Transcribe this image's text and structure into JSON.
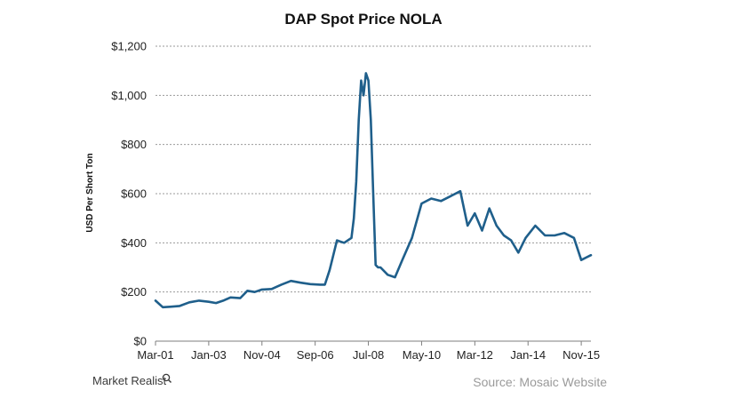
{
  "chart_data": {
    "type": "line",
    "title": "DAP Spot Price NOLA",
    "ylabel": "USD Per Short Ton",
    "xlabel": "",
    "ylim": [
      0,
      1200
    ],
    "yticks": [
      0,
      200,
      400,
      600,
      800,
      1000,
      1200
    ],
    "ytick_labels": [
      "$0",
      "$200",
      "$400",
      "$600",
      "$800",
      "$1,000",
      "$1,200"
    ],
    "xlim": [
      "2001-03",
      "2016-03"
    ],
    "x_tick_labels": [
      {
        "label": "Mar-01",
        "date": "2001-03"
      },
      {
        "label": "Jan-03",
        "date": "2003-01"
      },
      {
        "label": "Nov-04",
        "date": "2004-11"
      },
      {
        "label": "Sep-06",
        "date": "2006-09"
      },
      {
        "label": "Jul-08",
        "date": "2008-07"
      },
      {
        "label": "May-10",
        "date": "2010-05"
      },
      {
        "label": "Mar-12",
        "date": "2012-03"
      },
      {
        "label": "Jan-14",
        "date": "2014-01"
      },
      {
        "label": "Nov-15",
        "date": "2015-11"
      }
    ],
    "grid": {
      "horizontal": true,
      "style": "dotted"
    },
    "line_color": "#1f5f8b",
    "series": [
      {
        "x": [
          "2001-03",
          "2001-06",
          "2001-09",
          "2002-01",
          "2002-05",
          "2002-09",
          "2003-01",
          "2003-04",
          "2003-07",
          "2003-10",
          "2004-02",
          "2004-05",
          "2004-08",
          "2004-11",
          "2005-03",
          "2005-07",
          "2005-11",
          "2006-03",
          "2006-07",
          "2006-11",
          "2007-01",
          "2007-03",
          "2007-06",
          "2007-09",
          "2007-12",
          "2008-01",
          "2008-02",
          "2008-03",
          "2008-04",
          "2008-05",
          "2008-06",
          "2008-07",
          "2008-08",
          "2008-09",
          "2008-10",
          "2008-11",
          "2008-12",
          "2009-03",
          "2009-06",
          "2009-09",
          "2010-01",
          "2010-05",
          "2010-09",
          "2011-01",
          "2011-05",
          "2011-09",
          "2011-12",
          "2012-03",
          "2012-06",
          "2012-09",
          "2012-12",
          "2013-03",
          "2013-06",
          "2013-09",
          "2013-12",
          "2014-04",
          "2014-08",
          "2014-12",
          "2015-04",
          "2015-08",
          "2015-11",
          "2016-01",
          "2016-03"
        ],
        "y": [
          165,
          138,
          140,
          143,
          158,
          165,
          160,
          155,
          165,
          178,
          175,
          205,
          200,
          210,
          212,
          230,
          245,
          238,
          232,
          230,
          230,
          290,
          410,
          400,
          420,
          500,
          650,
          900,
          1060,
          1000,
          1090,
          1060,
          900,
          600,
          310,
          300,
          300,
          270,
          260,
          330,
          420,
          560,
          580,
          570,
          590,
          610,
          470,
          520,
          450,
          540,
          470,
          430,
          410,
          360,
          420,
          470,
          430,
          430,
          440,
          420,
          330,
          340,
          350
        ]
      }
    ],
    "annotations": {
      "brand": "Market Realist",
      "source": "Source: Mosaic Website"
    }
  }
}
